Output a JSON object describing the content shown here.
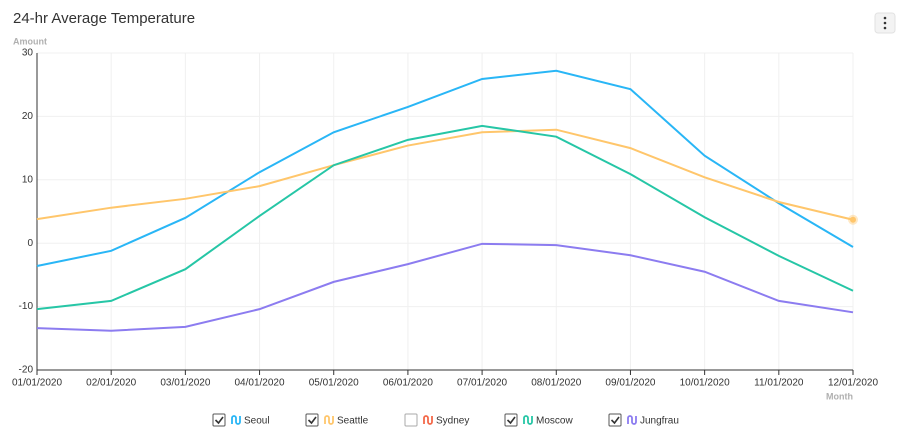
{
  "chart_data": {
    "type": "line",
    "title": "24-hr Average Temperature",
    "y_label": "Amount",
    "x_label": "Month",
    "categories": [
      "01/01/2020",
      "02/01/2020",
      "03/01/2020",
      "04/01/2020",
      "05/01/2020",
      "06/01/2020",
      "07/01/2020",
      "08/01/2020",
      "09/01/2020",
      "10/01/2020",
      "11/01/2020",
      "12/01/2020"
    ],
    "ylim": [
      -20,
      30
    ],
    "yticks": [
      -20,
      -10,
      0,
      10,
      20,
      30
    ],
    "grid": true,
    "series": [
      {
        "name": "Seoul",
        "color": "#29b6f6",
        "visible": true,
        "values": [
          -3.6,
          -1.2,
          4.0,
          11.2,
          17.5,
          21.5,
          25.9,
          27.2,
          24.3,
          13.8,
          6.3,
          -0.6
        ]
      },
      {
        "name": "Seattle",
        "color": "#ffc66b",
        "visible": true,
        "values": [
          3.8,
          5.6,
          7.0,
          9.0,
          12.3,
          15.4,
          17.5,
          17.9,
          15.0,
          10.4,
          6.5,
          3.7
        ]
      },
      {
        "name": "Sydney",
        "color": "#f4694a",
        "visible": false
      },
      {
        "name": "Moscow",
        "color": "#26c6a6",
        "visible": true,
        "values": [
          -10.4,
          -9.1,
          -4.1,
          4.3,
          12.3,
          16.3,
          18.5,
          16.8,
          10.9,
          4.1,
          -2.0,
          -7.5
        ]
      },
      {
        "name": "Jungfrau",
        "color": "#8c7cf0",
        "visible": true,
        "values": [
          -13.4,
          -13.8,
          -13.2,
          -10.4,
          -6.1,
          -3.3,
          -0.1,
          -0.3,
          -1.9,
          -4.5,
          -9.1,
          -10.9
        ]
      }
    ]
  }
}
